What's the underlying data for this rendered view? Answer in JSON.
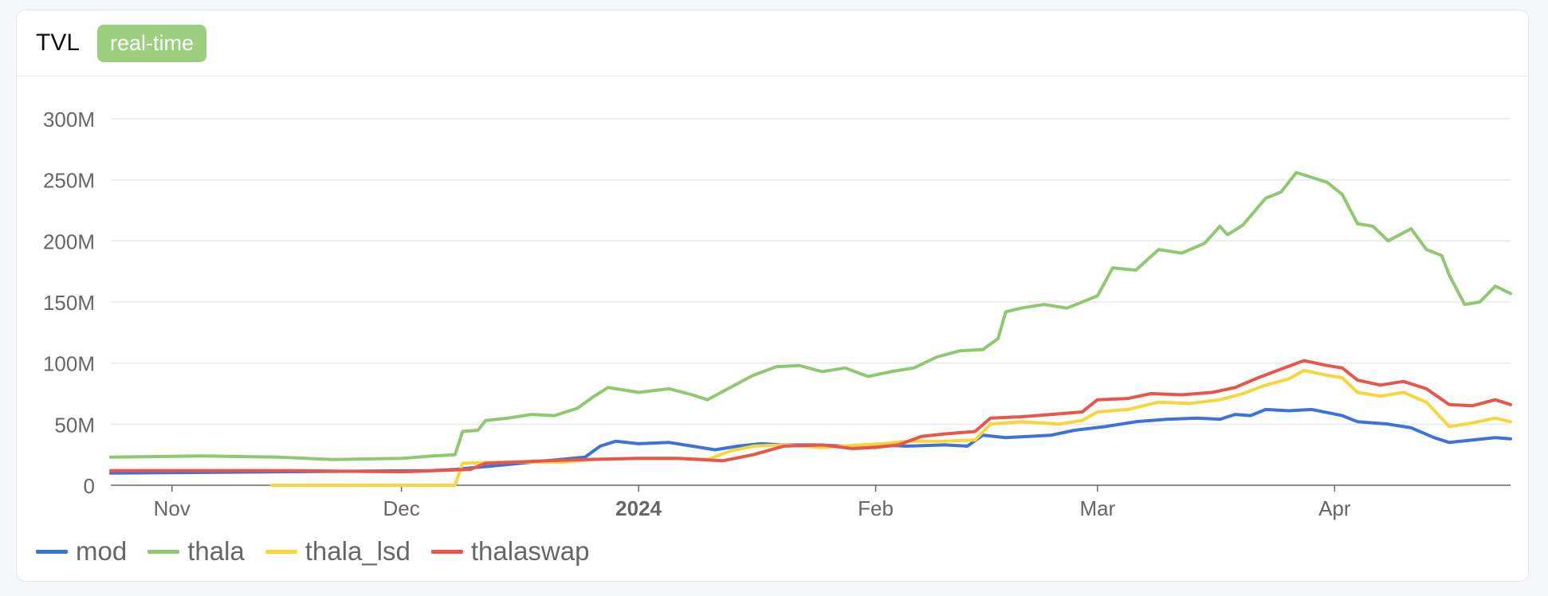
{
  "header": {
    "title": "TVL",
    "badge": "real-time"
  },
  "chart_data": {
    "type": "line",
    "title": "",
    "xlabel": "",
    "ylabel": "",
    "ylim": [
      0,
      300000000
    ],
    "y_ticks": [
      {
        "value": 0,
        "label": "0"
      },
      {
        "value": 50000000,
        "label": "50M"
      },
      {
        "value": 100000000,
        "label": "100M"
      },
      {
        "value": 150000000,
        "label": "150M"
      },
      {
        "value": 200000000,
        "label": "200M"
      },
      {
        "value": 250000000,
        "label": "250M"
      },
      {
        "value": 300000000,
        "label": "300M"
      }
    ],
    "xlim": [
      "2023-10-24",
      "2024-04-24"
    ],
    "x_ticks": [
      {
        "date": "2023-11-01",
        "label": "Nov",
        "bold": false
      },
      {
        "date": "2023-12-01",
        "label": "Dec",
        "bold": false
      },
      {
        "date": "2024-01-01",
        "label": "2024",
        "bold": true
      },
      {
        "date": "2024-02-01",
        "label": "Feb",
        "bold": false
      },
      {
        "date": "2024-03-01",
        "label": "Mar",
        "bold": false
      },
      {
        "date": "2024-04-01",
        "label": "Apr",
        "bold": false
      }
    ],
    "grid": true,
    "legend_position": "bottom-left",
    "series": [
      {
        "name": "mod",
        "color": "#3b73d9",
        "points": [
          [
            "2023-10-24",
            10
          ],
          [
            "2023-11-15",
            11
          ],
          [
            "2023-12-05",
            12
          ],
          [
            "2023-12-08",
            13
          ],
          [
            "2023-12-15",
            17
          ],
          [
            "2023-12-20",
            20
          ],
          [
            "2023-12-25",
            23
          ],
          [
            "2023-12-27",
            32
          ],
          [
            "2023-12-29",
            36
          ],
          [
            "2024-01-01",
            34
          ],
          [
            "2024-01-05",
            35
          ],
          [
            "2024-01-08",
            32
          ],
          [
            "2024-01-11",
            29
          ],
          [
            "2024-01-14",
            32
          ],
          [
            "2024-01-17",
            34
          ],
          [
            "2024-01-20",
            33
          ],
          [
            "2024-01-24",
            33
          ],
          [
            "2024-01-28",
            32
          ],
          [
            "2024-02-01",
            33
          ],
          [
            "2024-02-05",
            32
          ],
          [
            "2024-02-10",
            33
          ],
          [
            "2024-02-13",
            32
          ],
          [
            "2024-02-15",
            41
          ],
          [
            "2024-02-18",
            39
          ],
          [
            "2024-02-21",
            40
          ],
          [
            "2024-02-24",
            41
          ],
          [
            "2024-02-27",
            45
          ],
          [
            "2024-03-02",
            48
          ],
          [
            "2024-03-06",
            52
          ],
          [
            "2024-03-10",
            54
          ],
          [
            "2024-03-14",
            55
          ],
          [
            "2024-03-17",
            54
          ],
          [
            "2024-03-19",
            58
          ],
          [
            "2024-03-21",
            57
          ],
          [
            "2024-03-23",
            62
          ],
          [
            "2024-03-26",
            61
          ],
          [
            "2024-03-29",
            62
          ],
          [
            "2024-04-02",
            57
          ],
          [
            "2024-04-04",
            52
          ],
          [
            "2024-04-08",
            50
          ],
          [
            "2024-04-11",
            47
          ],
          [
            "2024-04-14",
            39
          ],
          [
            "2024-04-16",
            35
          ],
          [
            "2024-04-19",
            37
          ],
          [
            "2024-04-22",
            39
          ],
          [
            "2024-04-24",
            38
          ]
        ]
      },
      {
        "name": "thala",
        "color": "#8fc96f",
        "points": [
          [
            "2023-10-24",
            23
          ],
          [
            "2023-11-05",
            24
          ],
          [
            "2023-11-15",
            23
          ],
          [
            "2023-11-22",
            21
          ],
          [
            "2023-12-01",
            22
          ],
          [
            "2023-12-05",
            24
          ],
          [
            "2023-12-08",
            25
          ],
          [
            "2023-12-09",
            44
          ],
          [
            "2023-12-11",
            45
          ],
          [
            "2023-12-12",
            53
          ],
          [
            "2023-12-15",
            55
          ],
          [
            "2023-12-18",
            58
          ],
          [
            "2023-12-21",
            57
          ],
          [
            "2023-12-24",
            63
          ],
          [
            "2023-12-26",
            72
          ],
          [
            "2023-12-28",
            80
          ],
          [
            "2023-12-30",
            78
          ],
          [
            "2024-01-01",
            76
          ],
          [
            "2024-01-05",
            79
          ],
          [
            "2024-01-08",
            74
          ],
          [
            "2024-01-10",
            70
          ],
          [
            "2024-01-13",
            80
          ],
          [
            "2024-01-16",
            90
          ],
          [
            "2024-01-19",
            97
          ],
          [
            "2024-01-22",
            98
          ],
          [
            "2024-01-25",
            93
          ],
          [
            "2024-01-28",
            96
          ],
          [
            "2024-01-31",
            89
          ],
          [
            "2024-02-03",
            93
          ],
          [
            "2024-02-06",
            96
          ],
          [
            "2024-02-09",
            105
          ],
          [
            "2024-02-12",
            110
          ],
          [
            "2024-02-15",
            111
          ],
          [
            "2024-02-17",
            120
          ],
          [
            "2024-02-18",
            142
          ],
          [
            "2024-02-20",
            145
          ],
          [
            "2024-02-23",
            148
          ],
          [
            "2024-02-26",
            145
          ],
          [
            "2024-03-01",
            155
          ],
          [
            "2024-03-03",
            178
          ],
          [
            "2024-03-06",
            176
          ],
          [
            "2024-03-09",
            193
          ],
          [
            "2024-03-12",
            190
          ],
          [
            "2024-03-15",
            198
          ],
          [
            "2024-03-17",
            212
          ],
          [
            "2024-03-18",
            205
          ],
          [
            "2024-03-20",
            213
          ],
          [
            "2024-03-23",
            235
          ],
          [
            "2024-03-25",
            240
          ],
          [
            "2024-03-27",
            256
          ],
          [
            "2024-03-29",
            252
          ],
          [
            "2024-03-31",
            248
          ],
          [
            "2024-04-02",
            238
          ],
          [
            "2024-04-04",
            214
          ],
          [
            "2024-04-06",
            212
          ],
          [
            "2024-04-08",
            200
          ],
          [
            "2024-04-11",
            210
          ],
          [
            "2024-04-13",
            193
          ],
          [
            "2024-04-15",
            188
          ],
          [
            "2024-04-16",
            172
          ],
          [
            "2024-04-18",
            148
          ],
          [
            "2024-04-20",
            150
          ],
          [
            "2024-04-22",
            163
          ],
          [
            "2024-04-24",
            157
          ]
        ]
      },
      {
        "name": "thala_lsd",
        "color": "#f8d63a",
        "points": [
          [
            "2023-11-14",
            0
          ],
          [
            "2023-12-08",
            0
          ],
          [
            "2023-12-09",
            18
          ],
          [
            "2023-12-15",
            19
          ],
          [
            "2023-12-22",
            19
          ],
          [
            "2023-12-26",
            21
          ],
          [
            "2024-01-01",
            22
          ],
          [
            "2024-01-07",
            22
          ],
          [
            "2024-01-10",
            21
          ],
          [
            "2024-01-13",
            28
          ],
          [
            "2024-01-16",
            32
          ],
          [
            "2024-01-20",
            33
          ],
          [
            "2024-01-25",
            31
          ],
          [
            "2024-01-30",
            33
          ],
          [
            "2024-02-02",
            34
          ],
          [
            "2024-02-05",
            36
          ],
          [
            "2024-02-10",
            36
          ],
          [
            "2024-02-14",
            37
          ],
          [
            "2024-02-16",
            50
          ],
          [
            "2024-02-20",
            52
          ],
          [
            "2024-02-25",
            50
          ],
          [
            "2024-02-28",
            53
          ],
          [
            "2024-03-01",
            60
          ],
          [
            "2024-03-05",
            62
          ],
          [
            "2024-03-09",
            68
          ],
          [
            "2024-03-13",
            67
          ],
          [
            "2024-03-17",
            70
          ],
          [
            "2024-03-20",
            75
          ],
          [
            "2024-03-23",
            82
          ],
          [
            "2024-03-26",
            87
          ],
          [
            "2024-03-28",
            94
          ],
          [
            "2024-03-31",
            90
          ],
          [
            "2024-04-02",
            88
          ],
          [
            "2024-04-04",
            76
          ],
          [
            "2024-04-07",
            73
          ],
          [
            "2024-04-10",
            76
          ],
          [
            "2024-04-13",
            68
          ],
          [
            "2024-04-16",
            48
          ],
          [
            "2024-04-19",
            51
          ],
          [
            "2024-04-22",
            55
          ],
          [
            "2024-04-24",
            52
          ]
        ]
      },
      {
        "name": "thalaswap",
        "color": "#e9554a",
        "points": [
          [
            "2023-10-24",
            12
          ],
          [
            "2023-11-15",
            12
          ],
          [
            "2023-12-01",
            11
          ],
          [
            "2023-12-10",
            13
          ],
          [
            "2023-12-12",
            18
          ],
          [
            "2023-12-16",
            19
          ],
          [
            "2023-12-20",
            20
          ],
          [
            "2023-12-25",
            21
          ],
          [
            "2024-01-01",
            22
          ],
          [
            "2024-01-06",
            22
          ],
          [
            "2024-01-12",
            20
          ],
          [
            "2024-01-16",
            25
          ],
          [
            "2024-01-20",
            32
          ],
          [
            "2024-01-25",
            33
          ],
          [
            "2024-01-29",
            30
          ],
          [
            "2024-02-01",
            31
          ],
          [
            "2024-02-04",
            33
          ],
          [
            "2024-02-07",
            40
          ],
          [
            "2024-02-10",
            42
          ],
          [
            "2024-02-14",
            44
          ],
          [
            "2024-02-16",
            55
          ],
          [
            "2024-02-20",
            56
          ],
          [
            "2024-02-24",
            58
          ],
          [
            "2024-02-28",
            60
          ],
          [
            "2024-03-01",
            70
          ],
          [
            "2024-03-05",
            71
          ],
          [
            "2024-03-08",
            75
          ],
          [
            "2024-03-12",
            74
          ],
          [
            "2024-03-16",
            76
          ],
          [
            "2024-03-19",
            80
          ],
          [
            "2024-03-22",
            88
          ],
          [
            "2024-03-25",
            95
          ],
          [
            "2024-03-28",
            102
          ],
          [
            "2024-03-31",
            98
          ],
          [
            "2024-04-02",
            96
          ],
          [
            "2024-04-04",
            86
          ],
          [
            "2024-04-07",
            82
          ],
          [
            "2024-04-10",
            85
          ],
          [
            "2024-04-13",
            79
          ],
          [
            "2024-04-16",
            66
          ],
          [
            "2024-04-19",
            65
          ],
          [
            "2024-04-22",
            70
          ],
          [
            "2024-04-24",
            66
          ]
        ]
      }
    ]
  }
}
